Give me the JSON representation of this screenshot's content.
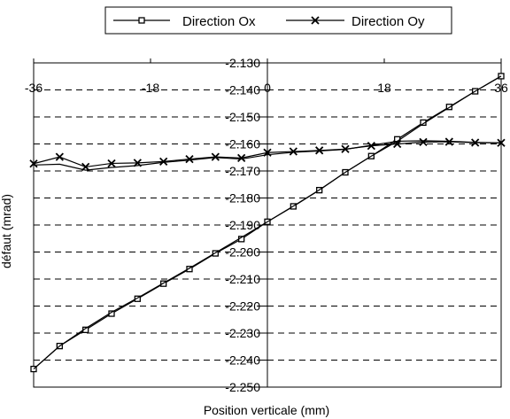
{
  "chart_data": {
    "type": "line",
    "title": "",
    "xlabel": "Position verticale (mm)",
    "ylabel": "défaut (mrad)",
    "xlim": [
      -36,
      36
    ],
    "ylim": [
      -2.25,
      -2.13
    ],
    "x_ticks": [
      -36,
      -18,
      0,
      18,
      36
    ],
    "x_tick_labels": [
      "-36",
      "-18",
      "0",
      "18",
      "36"
    ],
    "y_ticks": [
      -2.13,
      -2.14,
      -2.15,
      -2.16,
      -2.17,
      -2.18,
      -2.19,
      -2.2,
      -2.21,
      -2.22,
      -2.23,
      -2.24,
      -2.25
    ],
    "y_tick_labels": [
      "-2.130",
      "-2.140",
      "-2.150",
      "-2.160",
      "-2.170",
      "-2.180",
      "-2.190",
      "-2.200",
      "-2.210",
      "-2.220",
      "-2.230",
      "-2.240",
      "-2.250"
    ],
    "grid": "horizontal dashed",
    "legend_position": "top",
    "series": [
      {
        "name": "Direction Ox",
        "marker": "square",
        "color": "#000000",
        "x": [
          -36,
          -32,
          -28,
          -24,
          -20,
          -16,
          -12,
          -8,
          -4,
          0,
          4,
          8,
          12,
          16,
          20,
          24,
          28,
          32,
          36
        ],
        "values": [
          -2.2433,
          -2.2348,
          -2.2288,
          -2.2228,
          -2.2173,
          -2.2117,
          -2.2063,
          -2.2005,
          -2.1952,
          -2.1888,
          -2.1831,
          -2.1771,
          -2.1705,
          -2.1645,
          -2.1583,
          -2.1521,
          -2.1463,
          -2.1405,
          -2.1349
        ]
      },
      {
        "name": "Direction Ox",
        "marker": "none",
        "color": "#000000",
        "x": [
          -36,
          -32,
          -28,
          -24,
          -20,
          -16,
          -12,
          -8,
          -4,
          0,
          4,
          8,
          12,
          16,
          20,
          24,
          28,
          32,
          36
        ],
        "values": [
          -2.2433,
          -2.2348,
          -2.2283,
          -2.2223,
          -2.217,
          -2.2115,
          -2.206,
          -2.2003,
          -2.1946,
          -2.1888,
          -2.183,
          -2.177,
          -2.1705,
          -2.1645,
          -2.159,
          -2.1525,
          -2.1465,
          -2.1405,
          -2.1349
        ]
      },
      {
        "name": "Direction Oy",
        "marker": "x",
        "color": "#000000",
        "x": [
          -36,
          -32,
          -28,
          -24,
          -20,
          -16,
          -12,
          -8,
          -4,
          0,
          4,
          8,
          12,
          16,
          20,
          24,
          28,
          32,
          36
        ],
        "values": [
          -2.1673,
          -2.1648,
          -2.1685,
          -2.1672,
          -2.167,
          -2.1665,
          -2.1656,
          -2.1648,
          -2.1652,
          -2.1632,
          -2.1628,
          -2.1624,
          -2.1619,
          -2.1607,
          -2.16,
          -2.1593,
          -2.1592,
          -2.1595,
          -2.1596
        ]
      },
      {
        "name": "Direction Oy",
        "marker": "none",
        "color": "#000000",
        "x": [
          -36,
          -32,
          -28,
          -24,
          -20,
          -16,
          -12,
          -8,
          -4,
          0,
          4,
          8,
          12,
          16,
          20,
          24,
          28,
          32,
          36
        ],
        "values": [
          -2.1678,
          -2.1675,
          -2.1697,
          -2.1687,
          -2.168,
          -2.1668,
          -2.166,
          -2.165,
          -2.1656,
          -2.164,
          -2.1631,
          -2.1626,
          -2.162,
          -2.1605,
          -2.159,
          -2.1588,
          -2.159,
          -2.1594,
          -2.1596
        ]
      }
    ]
  }
}
